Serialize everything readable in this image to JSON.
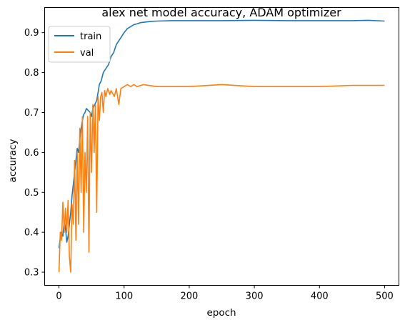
{
  "chart_data": {
    "type": "line",
    "title": "alex net model accuracy, ADAM optimizer",
    "xlabel": "epoch",
    "ylabel": "accuracy",
    "xlim": [
      -22,
      522
    ],
    "ylim": [
      0.267,
      0.963
    ],
    "xticks": [
      0,
      100,
      200,
      300,
      400,
      500
    ],
    "yticks": [
      0.3,
      0.4,
      0.5,
      0.6,
      0.7,
      0.8,
      0.9
    ],
    "grid": false,
    "legend_position": "top-left",
    "series": [
      {
        "name": "train",
        "color": "#1f77b4",
        "points": [
          [
            0,
            0.36
          ],
          [
            3,
            0.4
          ],
          [
            6,
            0.39
          ],
          [
            8,
            0.43
          ],
          [
            10,
            0.41
          ],
          [
            12,
            0.375
          ],
          [
            14,
            0.39
          ],
          [
            16,
            0.42
          ],
          [
            18,
            0.45
          ],
          [
            20,
            0.49
          ],
          [
            22,
            0.52
          ],
          [
            24,
            0.55
          ],
          [
            26,
            0.58
          ],
          [
            28,
            0.61
          ],
          [
            30,
            0.6
          ],
          [
            32,
            0.63
          ],
          [
            34,
            0.66
          ],
          [
            36,
            0.68
          ],
          [
            38,
            0.695
          ],
          [
            40,
            0.7
          ],
          [
            42,
            0.71
          ],
          [
            45,
            0.705
          ],
          [
            48,
            0.7
          ],
          [
            50,
            0.69
          ],
          [
            52,
            0.71
          ],
          [
            55,
            0.72
          ],
          [
            58,
            0.73
          ],
          [
            60,
            0.75
          ],
          [
            62,
            0.77
          ],
          [
            65,
            0.78
          ],
          [
            68,
            0.8
          ],
          [
            72,
            0.81
          ],
          [
            76,
            0.82
          ],
          [
            80,
            0.84
          ],
          [
            84,
            0.85
          ],
          [
            88,
            0.87
          ],
          [
            92,
            0.88
          ],
          [
            96,
            0.89
          ],
          [
            100,
            0.9
          ],
          [
            105,
            0.91
          ],
          [
            110,
            0.915
          ],
          [
            115,
            0.92
          ],
          [
            120,
            0.922
          ],
          [
            125,
            0.925
          ],
          [
            130,
            0.926
          ],
          [
            140,
            0.928
          ],
          [
            150,
            0.929
          ],
          [
            175,
            0.93
          ],
          [
            200,
            0.93
          ],
          [
            250,
            0.93
          ],
          [
            300,
            0.931
          ],
          [
            350,
            0.93
          ],
          [
            400,
            0.93
          ],
          [
            450,
            0.93
          ],
          [
            475,
            0.931
          ],
          [
            500,
            0.929
          ]
        ]
      },
      {
        "name": "val",
        "color": "#ff7f0e",
        "points": [
          [
            0,
            0.3
          ],
          [
            2,
            0.4
          ],
          [
            4,
            0.38
          ],
          [
            6,
            0.475
          ],
          [
            8,
            0.4
          ],
          [
            10,
            0.46
          ],
          [
            12,
            0.4
          ],
          [
            14,
            0.48
          ],
          [
            16,
            0.34
          ],
          [
            18,
            0.3
          ],
          [
            20,
            0.47
          ],
          [
            22,
            0.42
          ],
          [
            24,
            0.58
          ],
          [
            26,
            0.38
          ],
          [
            28,
            0.6
          ],
          [
            30,
            0.42
          ],
          [
            32,
            0.66
          ],
          [
            34,
            0.5
          ],
          [
            36,
            0.69
          ],
          [
            38,
            0.4
          ],
          [
            40,
            0.6
          ],
          [
            42,
            0.5
          ],
          [
            44,
            0.69
          ],
          [
            46,
            0.35
          ],
          [
            48,
            0.7
          ],
          [
            50,
            0.55
          ],
          [
            52,
            0.72
          ],
          [
            54,
            0.6
          ],
          [
            56,
            0.72
          ],
          [
            58,
            0.45
          ],
          [
            60,
            0.74
          ],
          [
            62,
            0.68
          ],
          [
            64,
            0.74
          ],
          [
            66,
            0.75
          ],
          [
            68,
            0.7
          ],
          [
            70,
            0.755
          ],
          [
            72,
            0.74
          ],
          [
            75,
            0.76
          ],
          [
            78,
            0.745
          ],
          [
            80,
            0.755
          ],
          [
            85,
            0.74
          ],
          [
            88,
            0.76
          ],
          [
            92,
            0.72
          ],
          [
            95,
            0.76
          ],
          [
            100,
            0.765
          ],
          [
            105,
            0.77
          ],
          [
            110,
            0.765
          ],
          [
            115,
            0.77
          ],
          [
            120,
            0.765
          ],
          [
            130,
            0.77
          ],
          [
            150,
            0.765
          ],
          [
            200,
            0.765
          ],
          [
            250,
            0.77
          ],
          [
            300,
            0.765
          ],
          [
            350,
            0.765
          ],
          [
            400,
            0.765
          ],
          [
            450,
            0.768
          ],
          [
            500,
            0.768
          ]
        ]
      }
    ]
  }
}
